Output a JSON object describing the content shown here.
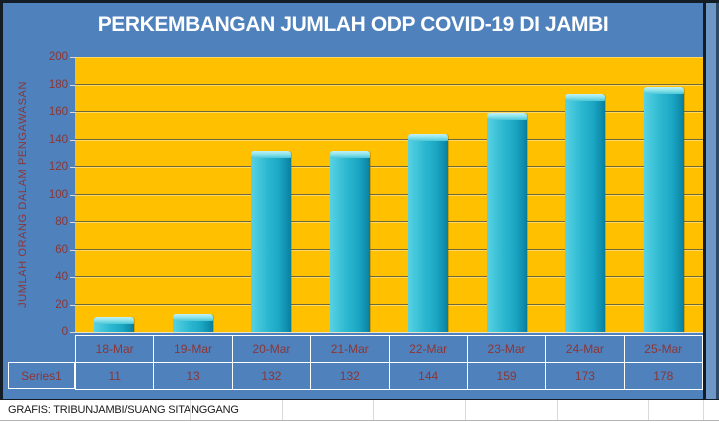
{
  "chart_data": {
    "type": "bar",
    "title": "PERKEMBANGAN JUMLAH ODP COVID-19 DI JAMBI",
    "categories": [
      "18-Mar",
      "19-Mar",
      "20-Mar",
      "21-Mar",
      "22-Mar",
      "23-Mar",
      "24-Mar",
      "25-Mar"
    ],
    "series": [
      {
        "name": "Series1",
        "values": [
          11,
          13,
          132,
          132,
          144,
          159,
          173,
          178
        ]
      }
    ],
    "xlabel": "",
    "ylabel": "JUMLAH ORANG DALAM PENGAWASAN",
    "ylim": [
      0,
      200
    ],
    "yticks": [
      0,
      20,
      40,
      60,
      80,
      100,
      120,
      140,
      160,
      180,
      200
    ],
    "grid": true,
    "legend_position": "data-table-row-header",
    "data_table_shown": true
  },
  "footer": {
    "credit": "GRAFIS: TRIBUNJAMBI/SUANG SITANGGANG"
  },
  "colors": {
    "chart_background": "#4F81BD",
    "plot_background": "#FFC000",
    "bar_fill": "#2FBAD2",
    "bar_cap_highlight": "#9FE9F0",
    "axis_text": "#8B3635",
    "title_text": "#FFFFFF",
    "table_border": "#FFFFFF",
    "footer_text": "#1A1A1A"
  }
}
